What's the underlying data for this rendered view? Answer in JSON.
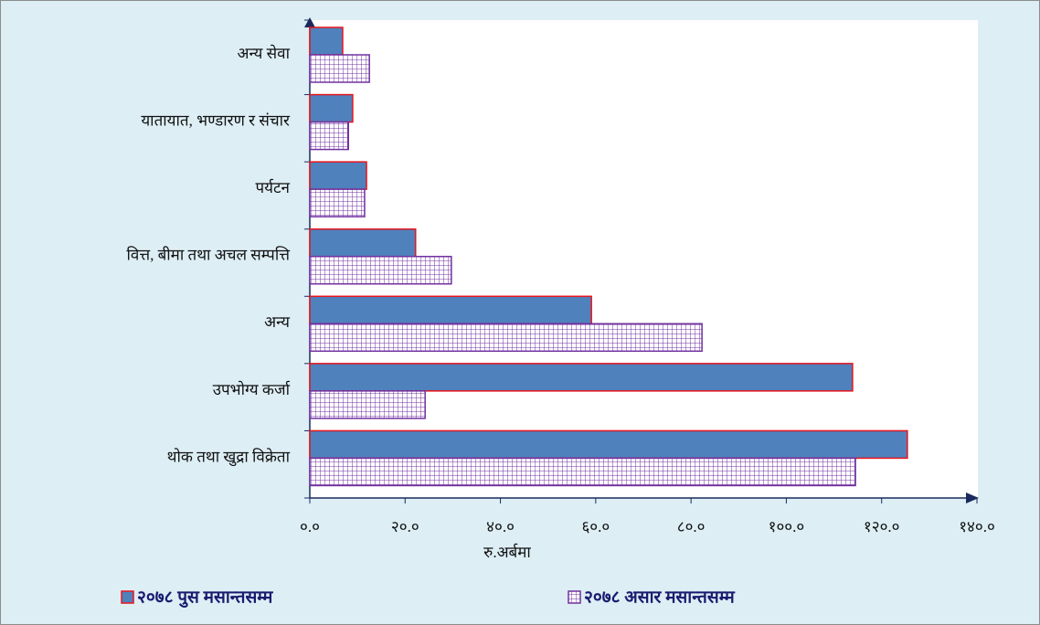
{
  "chart_data": {
    "type": "barh",
    "categories": [
      "अन्य सेवा",
      "यातायात, भण्डारण र संचार",
      "पर्यटन",
      "वित्त, बीमा तथा अचल सम्पत्ति",
      "अन्य",
      "उपभोग्य कर्जा",
      "थोक तथा खुद्रा विक्रेता"
    ],
    "series": [
      {
        "name": "२०७८ पुस मसान्तसम्म",
        "color": "#4f81bd",
        "edgecolor": "#e8141c",
        "hatch": false,
        "values": [
          6.9,
          9.0,
          11.9,
          22.2,
          59.1,
          113.9,
          125.4
        ]
      },
      {
        "name": "२०७८ असार मसान्तसम्म",
        "color": "#ffffff",
        "edgecolor": "#7030a0",
        "hatch": true,
        "values": [
          12.5,
          8.1,
          11.5,
          29.7,
          82.3,
          24.2,
          114.5
        ]
      }
    ],
    "xlabel": "रु.अर्बमा",
    "xlim": [
      0,
      140
    ],
    "xticks": [
      {
        "value": 0,
        "label": "०.०"
      },
      {
        "value": 20,
        "label": "२०.०"
      },
      {
        "value": 40,
        "label": "४०.०"
      },
      {
        "value": 60,
        "label": "६०.०"
      },
      {
        "value": 80,
        "label": "८०.०"
      },
      {
        "value": 100,
        "label": "१००.०"
      },
      {
        "value": 120,
        "label": "१२०.०"
      },
      {
        "value": 140,
        "label": "१४०.०"
      }
    ],
    "grid": false
  }
}
